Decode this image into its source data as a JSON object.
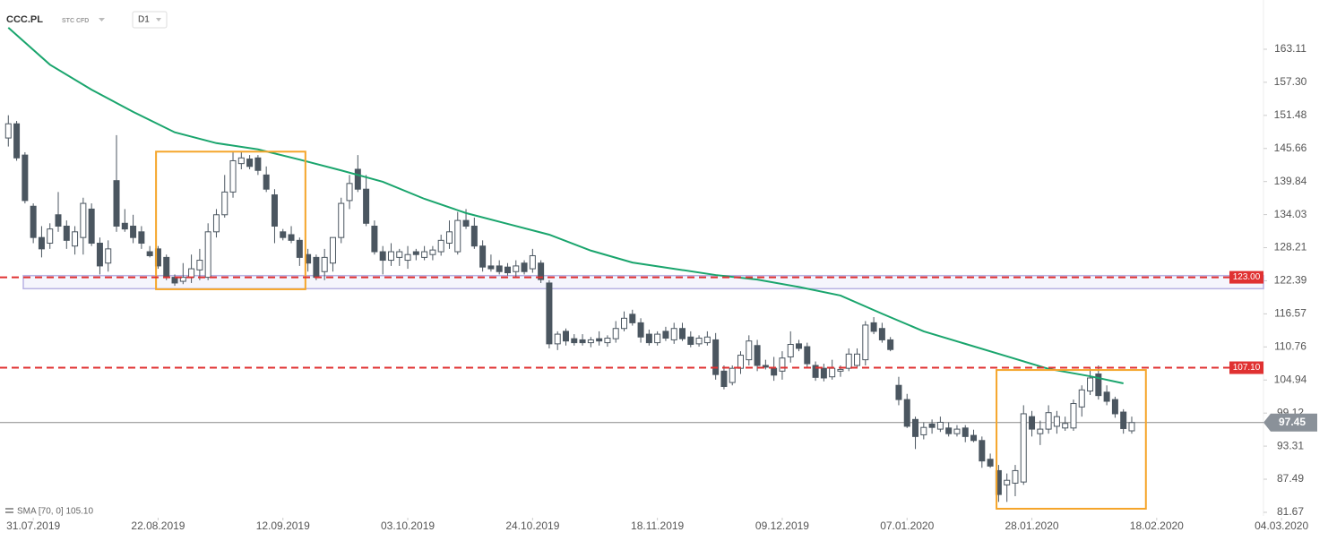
{
  "chart_data": {
    "type": "candlestick",
    "symbol": "CCC.PL",
    "instrument_type": "STC CFD",
    "interval": "D1",
    "open": [
      147.5,
      150,
      144.5,
      135.5,
      130,
      129,
      134,
      132,
      128.5,
      130,
      135,
      129,
      125.5,
      140,
      132.5,
      132,
      131,
      127.5,
      128,
      126.5,
      123,
      122.3,
      123,
      124.3,
      123,
      131,
      134,
      138,
      143,
      143.8,
      144,
      141,
      137.5,
      131,
      130.5,
      129.5,
      127,
      126.5,
      124,
      125.5,
      130,
      136.5,
      142,
      138.5,
      132,
      127.5,
      126,
      126.5,
      126,
      127.5,
      126.5,
      127,
      127.5,
      129,
      127.5,
      133,
      132,
      128.5,
      125,
      125,
      124.8,
      124,
      125.5,
      124.5,
      125.5,
      122,
      111.3,
      113.5,
      112.2,
      112,
      111.5,
      112.2,
      111.5,
      112.2,
      114,
      116.5,
      115,
      113,
      111.5,
      113.5,
      112,
      114,
      112.5,
      111.3,
      111.5,
      112,
      106.5,
      104.5,
      107,
      108.5,
      111,
      107.5,
      107,
      106.5,
      109,
      111.3,
      110.8,
      107.5,
      107,
      105.5,
      106.5,
      107,
      107.5,
      108.5,
      115,
      114,
      112,
      104,
      101.5,
      98,
      95.3,
      97.2,
      96.3,
      96.5,
      95.5,
      96.5,
      95.2,
      94.3,
      91,
      89,
      86.5,
      86.8,
      87,
      98.5,
      95.5,
      96.3,
      96.8,
      96.5,
      96.5,
      100.2,
      103,
      106,
      102.8,
      101.5,
      99.3,
      96
    ],
    "high": [
      151.5,
      150.5,
      145,
      136,
      132,
      132.5,
      138,
      133,
      132,
      137,
      136,
      130,
      129.5,
      148,
      135,
      134,
      132,
      128.5,
      128.5,
      127,
      123.5,
      125.5,
      127,
      128,
      132.5,
      135,
      141,
      145,
      145,
      144.5,
      144.5,
      142.5,
      138.5,
      131.5,
      132,
      130,
      128,
      127,
      128,
      130,
      137,
      141,
      144.5,
      141,
      133,
      128.5,
      129,
      128,
      128.5,
      128,
      128.5,
      128.5,
      130.5,
      133,
      134.5,
      135,
      133.5,
      129.5,
      127,
      126,
      125.5,
      126,
      126,
      128,
      126,
      122.5,
      113.5,
      114,
      113,
      113,
      112.5,
      113.5,
      112.8,
      115.3,
      117,
      117.3,
      115.8,
      113.8,
      113.5,
      114.3,
      115,
      115,
      113.5,
      112.8,
      113.5,
      113.2,
      107.5,
      107.5,
      110,
      112.8,
      112,
      108.5,
      109,
      110,
      113.5,
      112,
      111.5,
      108.2,
      107.8,
      108.5,
      107.5,
      110.5,
      110.5,
      115.3,
      116,
      115,
      112.5,
      105.5,
      102.5,
      98.5,
      97.5,
      98,
      98.5,
      97.5,
      97,
      97,
      96.2,
      95,
      92,
      90,
      88.5,
      90,
      100.5,
      99.5,
      97.8,
      100.5,
      99.5,
      98.5,
      101.5,
      104,
      107,
      107.5,
      104,
      102,
      99.8,
      98.5
    ],
    "low": [
      146,
      143.5,
      136,
      129,
      126.5,
      128,
      131,
      128,
      127,
      127,
      128.5,
      123.5,
      124,
      131,
      131,
      129,
      128,
      126.5,
      124.5,
      122.5,
      121.5,
      121.8,
      122,
      122.5,
      122.5,
      130,
      133.5,
      137,
      142,
      142,
      141,
      138,
      129,
      129.5,
      129,
      125,
      124,
      122.5,
      122.5,
      124,
      129,
      135,
      138,
      132,
      127,
      123.5,
      125,
      125,
      124.5,
      126,
      126,
      126,
      126.8,
      128,
      127,
      131.5,
      128,
      124,
      124,
      123.5,
      123.3,
      123,
      123.5,
      123.8,
      122,
      110.5,
      110.2,
      111,
      111,
      111,
      110.7,
      111,
      110.8,
      111.5,
      113.5,
      114.5,
      111.5,
      111,
      111,
      111.8,
      111.3,
      111.8,
      110.7,
      110.8,
      111,
      105,
      103.3,
      104,
      106,
      107.5,
      106.5,
      106.8,
      104.8,
      105,
      108,
      110,
      107,
      104.8,
      104.7,
      105,
      105.5,
      106.5,
      107,
      107.5,
      113,
      111.5,
      110,
      100.5,
      96.5,
      92.8,
      94.5,
      95.5,
      95.8,
      95,
      95,
      94,
      94,
      89.5,
      89.5,
      83.5,
      83.5,
      84.5,
      86.5,
      95,
      93.5,
      95.5,
      95.5,
      96,
      96,
      98.5,
      102.3,
      101.5,
      100.5,
      98.3,
      95.5,
      95.5
    ],
    "close": [
      150,
      144,
      136.5,
      130,
      128,
      131.5,
      132,
      129.5,
      131,
      136,
      129,
      125,
      128,
      132,
      131.5,
      130,
      129,
      126.8,
      125,
      123,
      122,
      123,
      124.5,
      126,
      131,
      134,
      138,
      143.5,
      144,
      142.5,
      141.8,
      138.5,
      132,
      130,
      129.5,
      126.5,
      125.5,
      123,
      126.5,
      130,
      136,
      139.5,
      138.5,
      132.5,
      127.5,
      126,
      127.5,
      127.5,
      127,
      127,
      127.5,
      127.8,
      129.5,
      131,
      133,
      132,
      128.5,
      124.8,
      124.5,
      124,
      123.8,
      125,
      124,
      126.8,
      122.6,
      111.3,
      113,
      111.8,
      111.5,
      111.5,
      112,
      111.8,
      112.3,
      114,
      115.8,
      115,
      112.5,
      111.5,
      113,
      112.3,
      114,
      112.2,
      111.2,
      112.3,
      112.5,
      105.9,
      103.8,
      107,
      109.3,
      111.8,
      107.5,
      107.2,
      105.8,
      108.8,
      111.2,
      110.5,
      107.8,
      105.4,
      105.3,
      107,
      106.8,
      109.5,
      109.5,
      114.6,
      113.5,
      112,
      110.3,
      101.5,
      96.8,
      95,
      96.6,
      96.6,
      97.5,
      95.5,
      96.3,
      95,
      94.3,
      90.7,
      89.8,
      84.8,
      87.3,
      89,
      99,
      96.3,
      96.3,
      99.2,
      98.5,
      97.3,
      100.8,
      103.2,
      105.3,
      102.2,
      101.2,
      99,
      96.4,
      97.45
    ],
    "up_color": "#ffffff",
    "down_color": "#4b5660",
    "sma": {
      "name": "SMA [70, 0] 105.10",
      "color": "#1aa56d",
      "x": [
        0,
        5,
        10,
        15,
        20,
        25,
        30,
        35,
        40,
        45,
        50,
        55,
        60,
        65,
        70,
        75,
        80,
        85,
        90,
        95,
        100,
        105,
        110,
        115,
        120,
        125,
        130,
        134
      ],
      "values": [
        166.9,
        160.4,
        156,
        152.1,
        148.5,
        146.6,
        145.5,
        143.7,
        141.8,
        139.8,
        136.8,
        134.3,
        132.4,
        130.5,
        127.7,
        125.6,
        124.5,
        123.4,
        122.6,
        121.3,
        119.8,
        116.6,
        113.5,
        111.3,
        109.1,
        106.9,
        105.6,
        104.35
      ]
    },
    "levels": [
      {
        "value": 123,
        "label": "123.00",
        "color": "#e03131"
      },
      {
        "value": 107.1,
        "label": "107.10",
        "color": "#e03131"
      }
    ],
    "current_price": 97.45,
    "zone": {
      "ylim": [
        121.0,
        123.3
      ],
      "color": "#b8b2e3"
    },
    "boxes": [
      {
        "xlim": [
          17.75,
          35.7
        ],
        "ylim": [
          120.9,
          145.1
        ],
        "color": "#f5a52a"
      },
      {
        "xlim": [
          118.75,
          136.7
        ],
        "ylim": [
          82.3,
          106.7
        ],
        "color": "#f5a52a"
      }
    ],
    "xlim": [
      -1,
      156
    ],
    "xticks": [
      {
        "value": 3,
        "label": "31.07.2019"
      },
      {
        "value": 18,
        "label": "22.08.2019"
      },
      {
        "value": 33,
        "label": "12.09.2019"
      },
      {
        "value": 48,
        "label": "03.10.2019"
      },
      {
        "value": 63,
        "label": "24.10.2019"
      },
      {
        "value": 78,
        "label": "18.11.2019"
      },
      {
        "value": 93,
        "label": "09.12.2019"
      },
      {
        "value": 108,
        "label": "07.01.2020"
      },
      {
        "value": 123,
        "label": "28.01.2020"
      },
      {
        "value": 138,
        "label": "18.02.2020"
      },
      {
        "value": 153,
        "label": "04.03.2020"
      }
    ],
    "ylim": [
      78.83,
      171.77
    ],
    "yticks": [
      81.67,
      87.49,
      93.31,
      99.12,
      104.94,
      110.76,
      116.57,
      122.39,
      128.21,
      134.03,
      139.84,
      145.66,
      151.48,
      {
        "value": 157.3,
        "label": "157.30"
      },
      163.11
    ]
  }
}
